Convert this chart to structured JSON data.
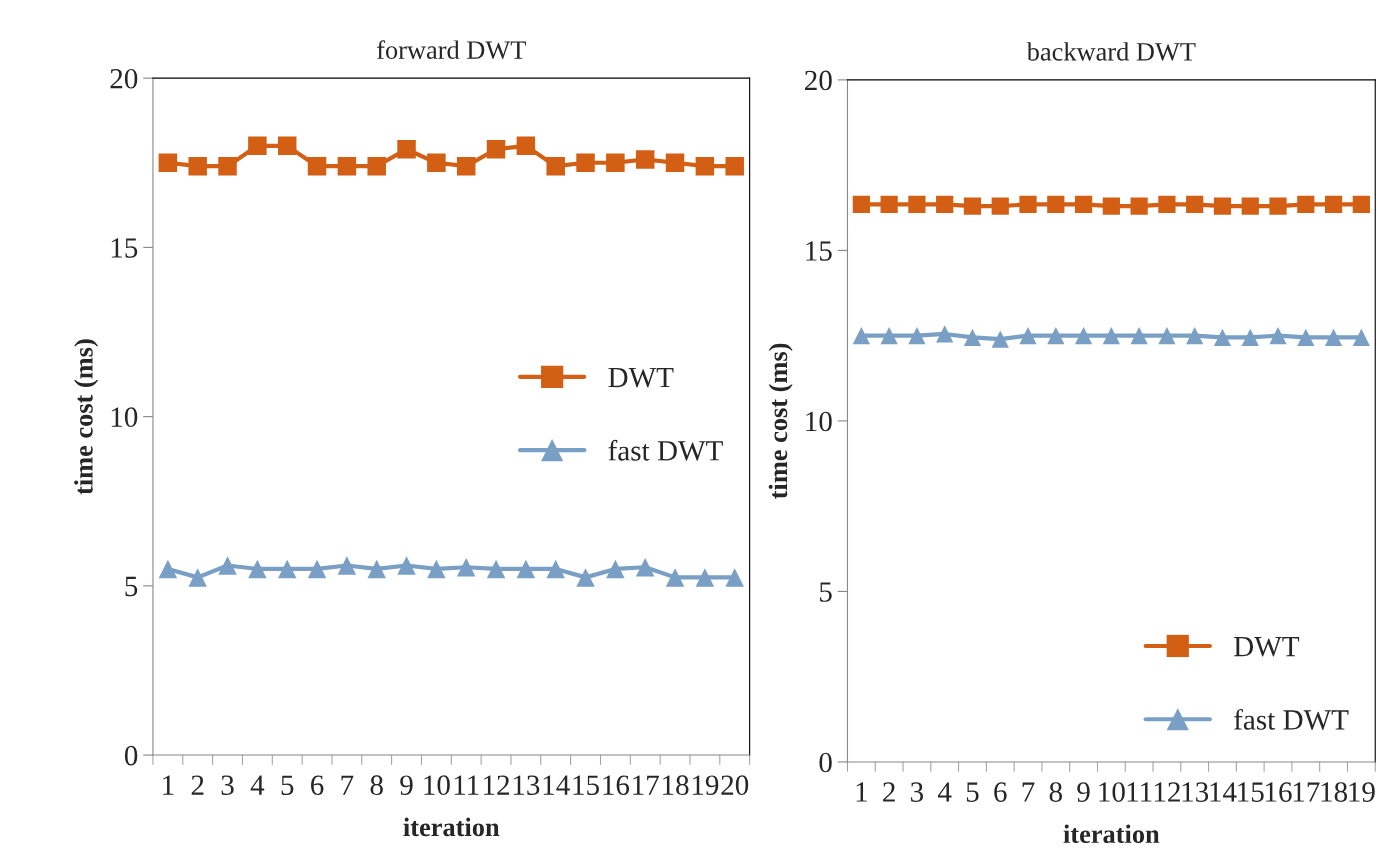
{
  "chart_data": [
    {
      "type": "line",
      "title": "forward DWT",
      "xlabel": "iteration",
      "ylabel": "time cost (ms)",
      "categories": [
        "1",
        "2",
        "3",
        "4",
        "5",
        "6",
        "7",
        "8",
        "9",
        "10",
        "11",
        "12",
        "13",
        "14",
        "15",
        "16",
        "17",
        "18",
        "19",
        "20"
      ],
      "ylim": [
        0,
        20
      ],
      "yticks": [
        0,
        5,
        10,
        15,
        20
      ],
      "legend": "right",
      "grid": false,
      "series": [
        {
          "name": "DWT",
          "color": "#d35f15",
          "marker": "square",
          "values": [
            17.5,
            17.4,
            17.4,
            18.0,
            18.0,
            17.4,
            17.4,
            17.4,
            17.9,
            17.5,
            17.4,
            17.9,
            18.0,
            17.4,
            17.5,
            17.5,
            17.6,
            17.5,
            17.4,
            17.4
          ]
        },
        {
          "name": "fast DWT",
          "color": "#7a9fc5",
          "marker": "triangle",
          "values": [
            5.5,
            5.25,
            5.6,
            5.5,
            5.5,
            5.5,
            5.6,
            5.5,
            5.6,
            5.5,
            5.55,
            5.5,
            5.5,
            5.5,
            5.25,
            5.5,
            5.55,
            5.25,
            5.25,
            5.25
          ]
        }
      ]
    },
    {
      "type": "line",
      "title": "backward DWT",
      "xlabel": "iteration",
      "ylabel": "time cost (ms)",
      "categories": [
        "1",
        "2",
        "3",
        "4",
        "5",
        "6",
        "7",
        "8",
        "9",
        "10",
        "11",
        "12",
        "13",
        "14",
        "15",
        "16",
        "17",
        "18",
        "19"
      ],
      "ylim": [
        0,
        20
      ],
      "yticks": [
        0,
        5,
        10,
        15,
        20
      ],
      "legend": "bottom right",
      "grid": false,
      "series": [
        {
          "name": "DWT",
          "color": "#d35f15",
          "marker": "square",
          "values": [
            16.35,
            16.35,
            16.35,
            16.35,
            16.3,
            16.3,
            16.35,
            16.35,
            16.35,
            16.3,
            16.3,
            16.35,
            16.35,
            16.3,
            16.3,
            16.3,
            16.35,
            16.35,
            16.35
          ]
        },
        {
          "name": "fast DWT",
          "color": "#7a9fc5",
          "marker": "triangle",
          "values": [
            12.5,
            12.5,
            12.5,
            12.55,
            12.45,
            12.4,
            12.5,
            12.5,
            12.5,
            12.5,
            12.5,
            12.5,
            12.5,
            12.45,
            12.45,
            12.5,
            12.45,
            12.45,
            12.45
          ]
        }
      ]
    }
  ]
}
